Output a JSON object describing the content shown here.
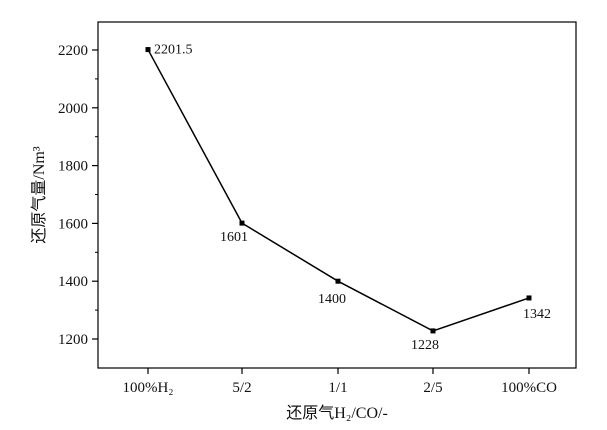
{
  "chart_data": {
    "type": "line",
    "title": "",
    "xlabel": "还原气H₂/CO/-",
    "ylabel": "还原气量/Nm³",
    "categories": [
      "100%H₂",
      "5/2",
      "1/1",
      "2/5",
      "100%CO"
    ],
    "series": [
      {
        "name": "还原气量",
        "values": [
          2201.5,
          1601,
          1400,
          1228,
          1342
        ],
        "labels": [
          "2201.5",
          "1601",
          "1400",
          "1228",
          "1342"
        ]
      }
    ],
    "ylim": [
      1100,
      2300
    ],
    "yticks": [
      1200,
      1400,
      1600,
      1800,
      2000,
      2200
    ],
    "ytick_labels": [
      "1200",
      "1400",
      "1600",
      "1800",
      "2000",
      "2200"
    ],
    "grid": false,
    "marker": "square",
    "colors": {
      "line": "#000000",
      "axis": "#000000"
    }
  }
}
